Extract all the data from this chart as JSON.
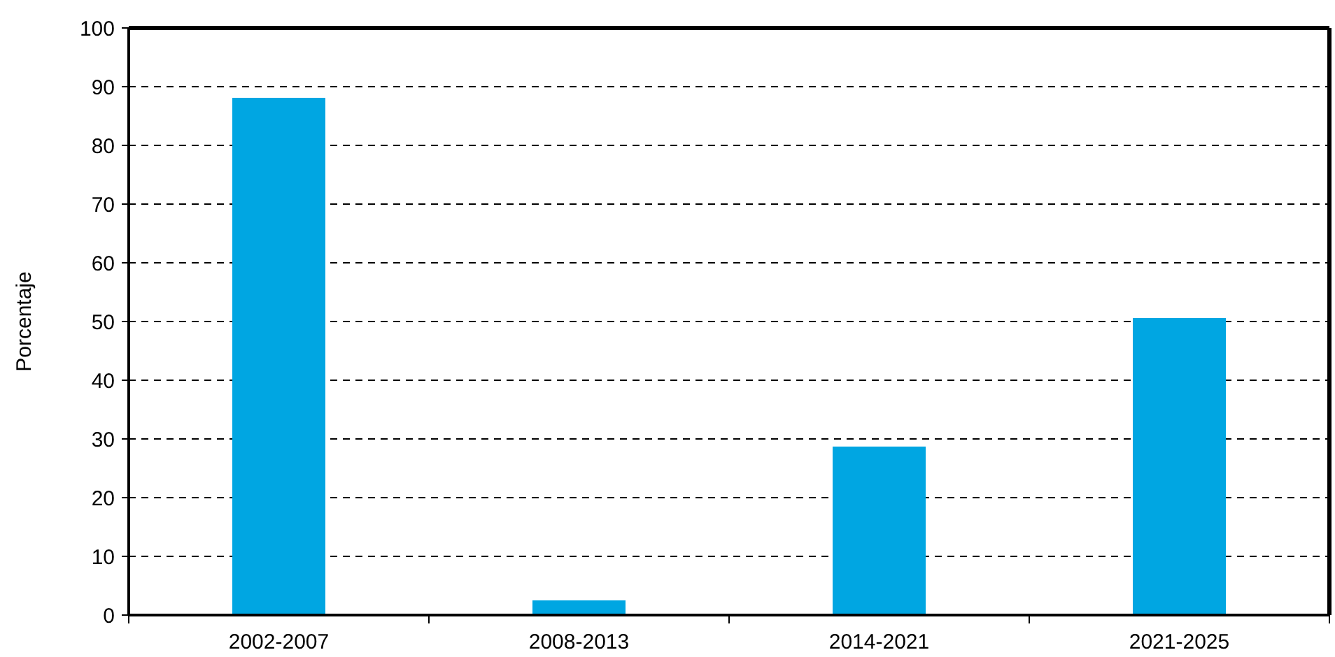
{
  "chart_data": {
    "type": "bar",
    "ylabel": "Porcentaje",
    "categories": [
      "2002-2007",
      "2008-2013",
      "2014-2021",
      "2021-2025"
    ],
    "values": [
      88.1,
      2.5,
      28.7,
      50.6
    ],
    "color": "#00a6e2",
    "ylim": [
      0,
      100
    ],
    "yticks": [
      0,
      10,
      20,
      30,
      40,
      50,
      60,
      70,
      80,
      90,
      100
    ],
    "grid": "y"
  }
}
